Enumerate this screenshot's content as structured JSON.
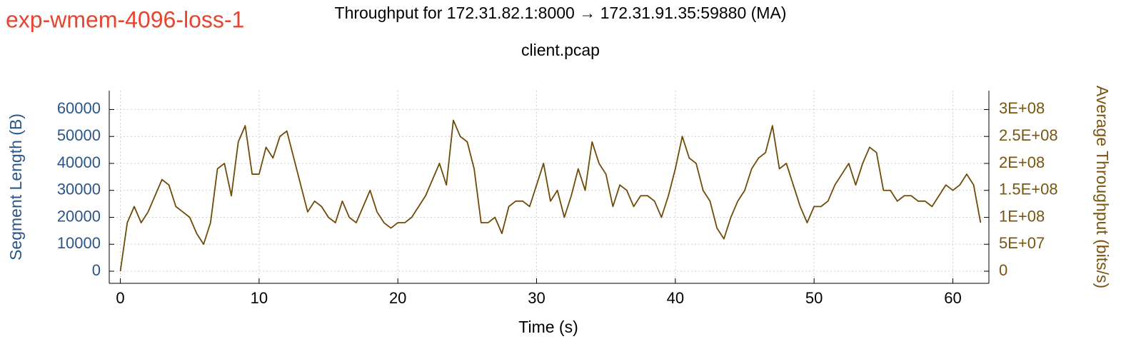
{
  "chart_data": {
    "type": "line",
    "header": "exp-wmem-4096-loss-1",
    "title": "Throughput for 172.31.82.1:8000 → 172.31.91.35:59880 (MA)",
    "subtitle": "client.pcap",
    "xlabel": "Time (s)",
    "ylabel": "Segment Length (B)",
    "y2label": "Average Throughput (bits/s)",
    "xlim": [
      -0.8,
      62.6
    ],
    "xticks": [
      0,
      10,
      20,
      30,
      40,
      50,
      60
    ],
    "ylim": [
      -4500,
      67000
    ],
    "yticks": [
      0,
      10000,
      20000,
      30000,
      40000,
      50000,
      60000
    ],
    "y2lim": [
      -22500000,
      335000000
    ],
    "y2ticks": [
      0,
      {
        "value": 50000000,
        "label": "5E+07"
      },
      {
        "value": 100000000,
        "label": "1E+08"
      },
      {
        "value": 150000000,
        "label": "1.5E+08"
      },
      {
        "value": 200000000,
        "label": "2E+08"
      },
      {
        "value": 250000000,
        "label": "2.5E+08"
      },
      {
        "value": 300000000,
        "label": "3E+08"
      }
    ],
    "grid": true,
    "x": [
      0,
      0.5,
      1,
      1.5,
      2,
      2.5,
      3,
      3.5,
      4,
      4.5,
      5,
      5.5,
      6,
      6.5,
      7,
      7.5,
      8,
      8.5,
      9,
      9.5,
      10,
      10.5,
      11,
      11.5,
      12,
      12.5,
      13,
      13.5,
      14,
      14.5,
      15,
      15.5,
      16,
      16.5,
      17,
      17.5,
      18,
      18.5,
      19,
      19.5,
      20,
      20.5,
      21,
      21.5,
      22,
      22.5,
      23,
      23.5,
      24,
      24.5,
      25,
      25.5,
      26,
      26.5,
      27,
      27.5,
      28,
      28.5,
      29,
      29.5,
      30,
      30.5,
      31,
      31.5,
      32,
      32.5,
      33,
      33.5,
      34,
      34.5,
      35,
      35.5,
      36,
      36.5,
      37,
      37.5,
      38,
      38.5,
      39,
      39.5,
      40,
      40.5,
      41,
      41.5,
      42,
      42.5,
      43,
      43.5,
      44,
      44.5,
      45,
      45.5,
      46,
      46.5,
      47,
      47.5,
      48,
      48.5,
      49,
      49.5,
      50,
      50.5,
      51,
      51.5,
      52,
      52.5,
      53,
      53.5,
      54,
      54.5,
      55,
      55.5,
      56,
      56.5,
      57,
      57.5,
      58,
      58.5,
      59,
      59.5,
      60,
      60.5,
      61,
      61.5,
      62
    ],
    "series": [
      {
        "name": "Average Throughput",
        "axis": "y2",
        "color": "#6e4b08",
        "values": [
          0,
          90000000,
          120000000,
          90000000,
          110000000,
          140000000,
          170000000,
          160000000,
          120000000,
          110000000,
          100000000,
          70000000,
          50000000,
          90000000,
          190000000,
          200000000,
          140000000,
          240000000,
          270000000,
          180000000,
          180000000,
          230000000,
          210000000,
          250000000,
          260000000,
          210000000,
          160000000,
          110000000,
          130000000,
          120000000,
          100000000,
          90000000,
          130000000,
          100000000,
          90000000,
          120000000,
          150000000,
          110000000,
          90000000,
          80000000,
          90000000,
          90000000,
          100000000,
          120000000,
          140000000,
          170000000,
          200000000,
          160000000,
          280000000,
          250000000,
          240000000,
          190000000,
          90000000,
          90000000,
          100000000,
          70000000,
          120000000,
          130000000,
          130000000,
          120000000,
          160000000,
          200000000,
          130000000,
          150000000,
          100000000,
          140000000,
          190000000,
          150000000,
          240000000,
          200000000,
          180000000,
          120000000,
          160000000,
          150000000,
          120000000,
          140000000,
          140000000,
          130000000,
          100000000,
          140000000,
          190000000,
          250000000,
          210000000,
          200000000,
          150000000,
          130000000,
          80000000,
          60000000,
          100000000,
          130000000,
          150000000,
          190000000,
          210000000,
          220000000,
          270000000,
          190000000,
          200000000,
          160000000,
          120000000,
          90000000,
          120000000,
          120000000,
          130000000,
          160000000,
          180000000,
          200000000,
          160000000,
          200000000,
          230000000,
          220000000,
          150000000,
          150000000,
          130000000,
          140000000,
          140000000,
          130000000,
          130000000,
          120000000,
          140000000,
          160000000,
          150000000,
          160000000,
          180000000,
          160000000,
          90000000
        ]
      }
    ]
  }
}
